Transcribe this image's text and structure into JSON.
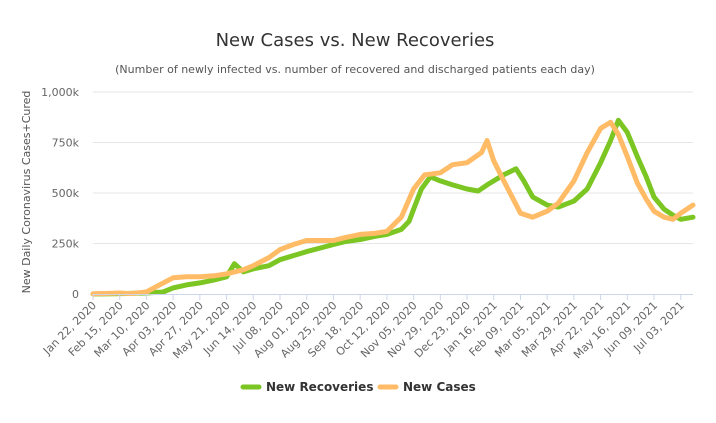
{
  "chart_data": {
    "type": "line",
    "title": "New Cases vs. New Recoveries",
    "subtitle": "(Number of newly infected vs. number of recovered and discharged patients each day)",
    "ylabel": "New Daily Coronavirus Cases+Cured",
    "xlabel": "",
    "ylim": [
      0,
      1000000
    ],
    "y_ticks": [
      0,
      250000,
      500000,
      750000,
      1000000
    ],
    "y_tick_labels": [
      "0",
      "250k",
      "500k",
      "750k",
      "1,000k"
    ],
    "x_start": "2020-01-22",
    "x_end": "2021-07-14",
    "x_tick_labels": [
      "Jan 22, 2020",
      "Feb 15, 2020",
      "Mar 10, 2020",
      "Apr 03, 2020",
      "Apr 27, 2020",
      "May 21, 2020",
      "Jun 14, 2020",
      "Jul 08, 2020",
      "Aug 01, 2020",
      "Aug 25, 2020",
      "Sep 18, 2020",
      "Oct 12, 2020",
      "Nov 05, 2020",
      "Nov 29, 2020",
      "Dec 23, 2020",
      "Jan 16, 2021",
      "Feb 09, 2021",
      "Mar 05, 2021",
      "Mar 29, 2021",
      "Apr 22, 2021",
      "May 16, 2021",
      "Jun 09, 2021",
      "Jul 03, 2021"
    ],
    "grid": true,
    "legend": "bottom",
    "series": [
      {
        "name": "New Recoveries",
        "color": "#7cc623",
        "points": [
          [
            "2020-01-22",
            0
          ],
          [
            "2020-02-10",
            1000
          ],
          [
            "2020-02-15",
            2000
          ],
          [
            "2020-02-25",
            3000
          ],
          [
            "2020-03-10",
            5000
          ],
          [
            "2020-03-25",
            10000
          ],
          [
            "2020-04-03",
            30000
          ],
          [
            "2020-04-15",
            45000
          ],
          [
            "2020-04-27",
            55000
          ],
          [
            "2020-05-10",
            70000
          ],
          [
            "2020-05-21",
            85000
          ],
          [
            "2020-05-28",
            150000
          ],
          [
            "2020-06-05",
            110000
          ],
          [
            "2020-06-14",
            125000
          ],
          [
            "2020-06-28",
            140000
          ],
          [
            "2020-07-08",
            170000
          ],
          [
            "2020-07-20",
            190000
          ],
          [
            "2020-08-01",
            210000
          ],
          [
            "2020-08-15",
            230000
          ],
          [
            "2020-08-25",
            245000
          ],
          [
            "2020-09-05",
            260000
          ],
          [
            "2020-09-18",
            270000
          ],
          [
            "2020-10-01",
            285000
          ],
          [
            "2020-10-12",
            295000
          ],
          [
            "2020-10-25",
            320000
          ],
          [
            "2020-11-01",
            360000
          ],
          [
            "2020-11-05",
            420000
          ],
          [
            "2020-11-12",
            520000
          ],
          [
            "2020-11-20",
            580000
          ],
          [
            "2020-11-29",
            560000
          ],
          [
            "2020-12-10",
            540000
          ],
          [
            "2020-12-23",
            520000
          ],
          [
            "2021-01-02",
            510000
          ],
          [
            "2021-01-10",
            540000
          ],
          [
            "2021-01-16",
            560000
          ],
          [
            "2021-01-25",
            590000
          ],
          [
            "2021-02-05",
            620000
          ],
          [
            "2021-02-12",
            560000
          ],
          [
            "2021-02-20",
            480000
          ],
          [
            "2021-03-05",
            440000
          ],
          [
            "2021-03-15",
            430000
          ],
          [
            "2021-03-29",
            460000
          ],
          [
            "2021-04-10",
            520000
          ],
          [
            "2021-04-22",
            650000
          ],
          [
            "2021-05-01",
            760000
          ],
          [
            "2021-05-08",
            860000
          ],
          [
            "2021-05-16",
            800000
          ],
          [
            "2021-05-25",
            680000
          ],
          [
            "2021-06-02",
            580000
          ],
          [
            "2021-06-09",
            480000
          ],
          [
            "2021-06-18",
            420000
          ],
          [
            "2021-06-26",
            390000
          ],
          [
            "2021-07-03",
            370000
          ],
          [
            "2021-07-14",
            380000
          ]
        ]
      },
      {
        "name": "New Cases",
        "color": "#ffbb66",
        "points": [
          [
            "2020-01-22",
            1000
          ],
          [
            "2020-02-05",
            3000
          ],
          [
            "2020-02-15",
            5000
          ],
          [
            "2020-02-25",
            2000
          ],
          [
            "2020-03-10",
            10000
          ],
          [
            "2020-03-20",
            40000
          ],
          [
            "2020-04-03",
            80000
          ],
          [
            "2020-04-15",
            85000
          ],
          [
            "2020-04-27",
            85000
          ],
          [
            "2020-05-10",
            90000
          ],
          [
            "2020-05-21",
            100000
          ],
          [
            "2020-06-05",
            120000
          ],
          [
            "2020-06-14",
            140000
          ],
          [
            "2020-06-28",
            180000
          ],
          [
            "2020-07-08",
            220000
          ],
          [
            "2020-07-20",
            245000
          ],
          [
            "2020-08-01",
            265000
          ],
          [
            "2020-08-15",
            265000
          ],
          [
            "2020-08-25",
            265000
          ],
          [
            "2020-09-05",
            280000
          ],
          [
            "2020-09-18",
            295000
          ],
          [
            "2020-10-01",
            300000
          ],
          [
            "2020-10-12",
            310000
          ],
          [
            "2020-10-25",
            380000
          ],
          [
            "2020-11-05",
            520000
          ],
          [
            "2020-11-15",
            590000
          ],
          [
            "2020-11-29",
            600000
          ],
          [
            "2020-12-10",
            640000
          ],
          [
            "2020-12-23",
            650000
          ],
          [
            "2021-01-05",
            700000
          ],
          [
            "2021-01-10",
            760000
          ],
          [
            "2021-01-16",
            660000
          ],
          [
            "2021-01-25",
            560000
          ],
          [
            "2021-02-09",
            400000
          ],
          [
            "2021-02-20",
            380000
          ],
          [
            "2021-03-05",
            410000
          ],
          [
            "2021-03-15",
            450000
          ],
          [
            "2021-03-29",
            560000
          ],
          [
            "2021-04-10",
            700000
          ],
          [
            "2021-04-22",
            820000
          ],
          [
            "2021-05-01",
            850000
          ],
          [
            "2021-05-08",
            790000
          ],
          [
            "2021-05-16",
            680000
          ],
          [
            "2021-05-25",
            550000
          ],
          [
            "2021-06-02",
            470000
          ],
          [
            "2021-06-09",
            410000
          ],
          [
            "2021-06-18",
            380000
          ],
          [
            "2021-06-26",
            370000
          ],
          [
            "2021-07-03",
            400000
          ],
          [
            "2021-07-14",
            440000
          ]
        ]
      }
    ]
  }
}
